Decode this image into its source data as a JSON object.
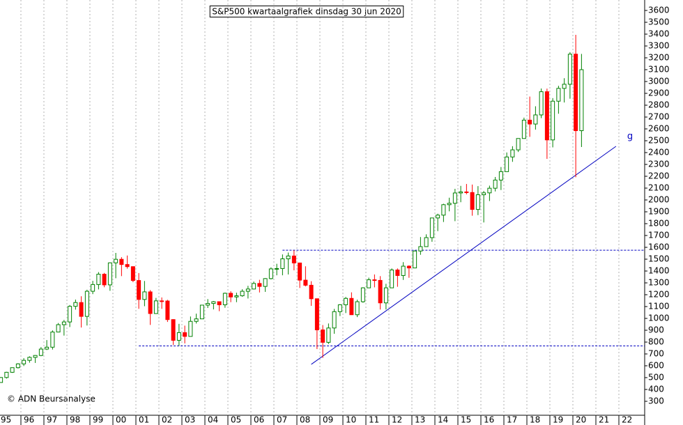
{
  "chart_data": {
    "type": "candlestick",
    "title": "S&P500 kwartaalgrafiek dinsdag 30 jun 2020",
    "copyright": "© ADN Beursanalyse",
    "up_color": "#008000",
    "down_color": "#ff0000",
    "open": [
      459,
      501,
      545,
      584,
      616,
      646,
      671,
      687,
      741,
      757,
      885,
      947,
      970,
      1102,
      1134,
      1017,
      1229,
      1286,
      1373,
      1283,
      1469,
      1499,
      1455,
      1437,
      1320,
      1160,
      1224,
      1041,
      1148,
      1147,
      990,
      815,
      880,
      848,
      975,
      996,
      1112,
      1126,
      1141,
      1115,
      1212,
      1181,
      1191,
      1229,
      1248,
      1295,
      1270,
      1336,
      1418,
      1421,
      1503,
      1527,
      1468,
      1323,
      1280,
      1166,
      903,
      798,
      919,
      1057,
      1115,
      1169,
      1031,
      1141,
      1258,
      1326,
      1321,
      1131,
      1258,
      1409,
      1362,
      1441,
      1426,
      1569,
      1606,
      1682,
      1848,
      1872,
      1960,
      1972,
      2059,
      2068,
      2063,
      1920,
      2044,
      2060,
      2099,
      2168,
      2239,
      2363,
      2423,
      2519,
      2674,
      2641,
      2718,
      2914,
      2507,
      2834,
      2942,
      2977,
      3231,
      2585
    ],
    "high": [
      504,
      549,
      586,
      622,
      664,
      680,
      690,
      758,
      817,
      899,
      961,
      987,
      1113,
      1159,
      1187,
      1242,
      1317,
      1391,
      1384,
      1473,
      1553,
      1517,
      1531,
      1439,
      1383,
      1316,
      1239,
      1173,
      1177,
      1157,
      993,
      954,
      939,
      1016,
      1040,
      1112,
      1163,
      1147,
      1117,
      1218,
      1229,
      1217,
      1246,
      1275,
      1311,
      1326,
      1340,
      1431,
      1461,
      1540,
      1556,
      1576,
      1471,
      1440,
      1314,
      1167,
      944,
      957,
      1080,
      1120,
      1181,
      1220,
      1158,
      1263,
      1344,
      1371,
      1357,
      1292,
      1422,
      1422,
      1475,
      1448,
      1574,
      1687,
      1710,
      1849,
      1884,
      1968,
      2019,
      2094,
      2119,
      2135,
      2130,
      2117,
      2076,
      2121,
      2194,
      2278,
      2401,
      2454,
      2520,
      2695,
      2873,
      2791,
      2941,
      2940,
      2860,
      2964,
      3028,
      3248,
      3394,
      3233
    ],
    "low": [
      459,
      492,
      540,
      577,
      598,
      626,
      624,
      681,
      733,
      737,
      884,
      855,
      927,
      1074,
      923,
      940,
      1205,
      1245,
      1263,
      1233,
      1339,
      1357,
      1420,
      1306,
      1081,
      1103,
      945,
      1038,
      1081,
      970,
      776,
      768,
      789,
      847,
      957,
      1018,
      1088,
      1076,
      1061,
      1090,
      1137,
      1137,
      1183,
      1168,
      1245,
      1219,
      1224,
      1329,
      1364,
      1364,
      1371,
      1406,
      1257,
      1270,
      1106,
      741,
      667,
      784,
      870,
      1020,
      1045,
      1029,
      1011,
      1132,
      1256,
      1262,
      1075,
      1075,
      1259,
      1267,
      1325,
      1343,
      1426,
      1537,
      1605,
      1647,
      1737,
      1814,
      1904,
      1821,
      1981,
      2048,
      1867,
      1872,
      1810,
      1991,
      2072,
      2084,
      2245,
      2322,
      2405,
      2520,
      2533,
      2594,
      2691,
      2347,
      2444,
      2728,
      2823,
      2855,
      2192,
      2447
    ],
    "close": [
      501,
      545,
      584,
      616,
      646,
      671,
      687,
      741,
      757,
      885,
      947,
      970,
      1102,
      1134,
      1017,
      1229,
      1286,
      1373,
      1283,
      1469,
      1499,
      1455,
      1437,
      1320,
      1160,
      1224,
      1041,
      1148,
      1147,
      990,
      815,
      880,
      848,
      975,
      996,
      1112,
      1126,
      1141,
      1115,
      1212,
      1181,
      1191,
      1229,
      1248,
      1295,
      1270,
      1336,
      1418,
      1421,
      1503,
      1527,
      1468,
      1323,
      1280,
      1166,
      903,
      798,
      919,
      1057,
      1115,
      1169,
      1031,
      1141,
      1258,
      1326,
      1321,
      1131,
      1258,
      1409,
      1362,
      1441,
      1426,
      1569,
      1606,
      1682,
      1848,
      1872,
      1960,
      1972,
      2059,
      2068,
      2063,
      1920,
      2044,
      2060,
      2099,
      2168,
      2239,
      2363,
      2423,
      2519,
      2674,
      2641,
      2718,
      2914,
      2507,
      2834,
      2942,
      2977,
      3231,
      2585,
      3100
    ],
    "xticks": [
      "95",
      "96",
      "97",
      "98",
      "99",
      "00",
      "01",
      "02",
      "03",
      "04",
      "05",
      "06",
      "07",
      "08",
      "09",
      "10",
      "11",
      "12",
      "13",
      "14",
      "15",
      "16",
      "17",
      "18",
      "19",
      "20",
      "21",
      "22"
    ],
    "ylim": [
      300,
      3600
    ],
    "yticks": [
      300,
      400,
      500,
      600,
      700,
      800,
      900,
      1000,
      1100,
      1200,
      1300,
      1400,
      1500,
      1600,
      1700,
      1800,
      1900,
      2000,
      2100,
      2200,
      2300,
      2400,
      2500,
      2600,
      2700,
      2800,
      2900,
      3000,
      3100,
      3200,
      3300,
      3400,
      3500,
      3600
    ],
    "levels": [
      {
        "value": 1576,
        "start": 49
      },
      {
        "value": 768,
        "start": 24
      }
    ],
    "trendline": {
      "label": "g",
      "x": [
        54,
        107
      ],
      "y": [
        612,
        2453
      ],
      "color": "#0000c0"
    }
  }
}
